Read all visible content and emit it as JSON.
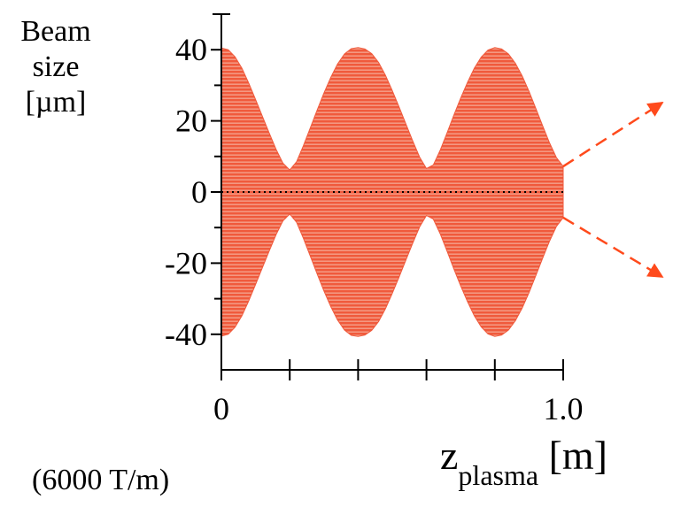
{
  "chart_data": {
    "type": "area",
    "ylabel_lines": [
      "Beam",
      "size",
      "[µm]"
    ],
    "xlabel": {
      "main": "z",
      "sub": "plasma",
      "unit": " [m]"
    },
    "annotation": "(6000 T/m)",
    "x_ticks": [
      0,
      0.2,
      0.4,
      0.6,
      0.8,
      1.0
    ],
    "x_tick_labels": [
      {
        "value": 0,
        "text": "0"
      },
      {
        "value": 1.0,
        "text": "1.0"
      }
    ],
    "y_ticks": [
      -40,
      -30,
      -20,
      -10,
      0,
      10,
      20,
      30,
      40
    ],
    "y_tick_labels": [
      {
        "value": 40,
        "text": "40"
      },
      {
        "value": 20,
        "text": "20"
      },
      {
        "value": 0,
        "text": "0"
      },
      {
        "value": -20,
        "text": "-20"
      },
      {
        "value": -40,
        "text": "-40"
      }
    ],
    "xlim": [
      0,
      1.0
    ],
    "ylim": [
      -50,
      50
    ],
    "envelope": {
      "x": [
        0,
        0.02,
        0.04,
        0.06,
        0.08,
        0.1,
        0.12,
        0.14,
        0.16,
        0.18,
        0.2,
        0.22,
        0.24,
        0.26,
        0.28,
        0.3,
        0.32,
        0.34,
        0.36,
        0.38,
        0.4,
        0.42,
        0.44,
        0.46,
        0.48,
        0.5,
        0.52,
        0.54,
        0.56,
        0.58,
        0.6,
        0.62,
        0.64,
        0.66,
        0.68,
        0.7,
        0.72,
        0.74,
        0.76,
        0.78,
        0.8,
        0.82,
        0.84,
        0.86,
        0.88,
        0.9,
        0.92,
        0.94,
        0.96,
        0.98,
        1.0
      ],
      "y": [
        40.5,
        40.0,
        38.0,
        34.8,
        30.6,
        26.0,
        21.3,
        16.6,
        12.0,
        8.1,
        6.2,
        8.5,
        13.0,
        18.0,
        23.0,
        27.8,
        32.2,
        36.0,
        38.8,
        40.3,
        40.6,
        40.2,
        38.9,
        36.4,
        32.8,
        28.5,
        23.9,
        19.1,
        14.3,
        9.8,
        6.6,
        7.6,
        11.7,
        16.6,
        21.6,
        26.4,
        30.8,
        34.8,
        37.9,
        39.9,
        40.6,
        40.2,
        38.8,
        36.2,
        32.6,
        28.3,
        23.5,
        18.6,
        13.8,
        9.7,
        7.2
      ]
    },
    "reference_line": {
      "y": 0,
      "style": "dotted"
    },
    "fill_color": "#f05a3c",
    "stripe_color": "#f7b29f",
    "arrow_color": "#ff4a1c"
  }
}
